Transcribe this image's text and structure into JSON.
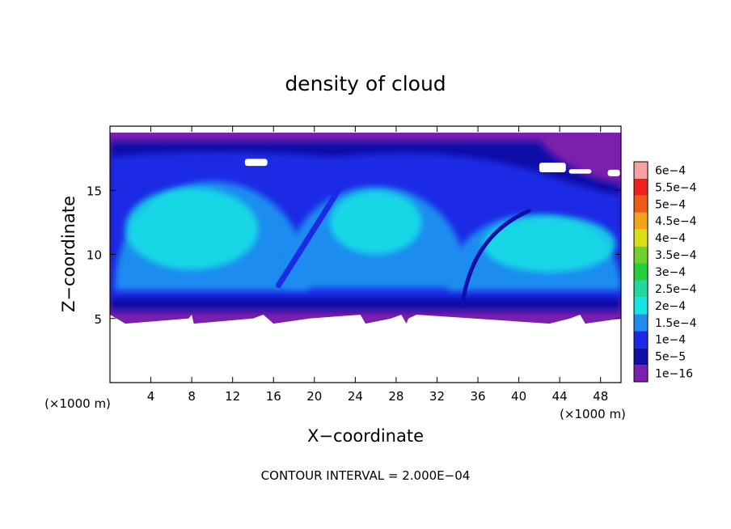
{
  "chart_data": {
    "type": "heatmap",
    "title": "density of cloud",
    "xlabel": "X−coordinate",
    "ylabel": "Z−coordinate",
    "x_unit": "(×1000 m)",
    "y_unit": "(×1000 m)",
    "xlim": [
      0,
      50
    ],
    "ylim": [
      0,
      20
    ],
    "x_ticks": [
      4,
      8,
      12,
      16,
      20,
      24,
      28,
      32,
      36,
      40,
      44,
      48
    ],
    "x_tick_labels": [
      "4",
      "8",
      "12",
      "16",
      "20",
      "24",
      "28",
      "32",
      "36",
      "40",
      "44",
      "48"
    ],
    "y_ticks": [
      5,
      10,
      15
    ],
    "y_tick_labels": [
      "5",
      "10",
      "15"
    ],
    "colorbar": {
      "labels": [
        "1e−16",
        "5e−5",
        "1e−4",
        "1.5e−4",
        "2e−4",
        "2.5e−4",
        "3e−4",
        "3.5e−4",
        "4e−4",
        "4.5e−4",
        "5e−4",
        "5.5e−4",
        "6e−4"
      ],
      "colors": [
        "#7a1fae",
        "#1010a8",
        "#1a2ae6",
        "#1f8cf0",
        "#14e4e4",
        "#20d8a0",
        "#26cf3c",
        "#6fd22a",
        "#d8e014",
        "#f3a314",
        "#f05a14",
        "#f31e1e",
        "#f9a0a0"
      ]
    },
    "cloud_layer": {
      "base_z": 5,
      "top_z": 19.5
    },
    "note": "CONTOUR INTERVAL = 2.000E−04",
    "grid": false,
    "colors": {
      "background": "#ffffff",
      "outer_cloud": "#7a1fae",
      "dark_blue": "#1010a8",
      "blue": "#1a2ae6",
      "light_blue": "#1f8cf0",
      "cyan": "#14e4e4"
    }
  }
}
